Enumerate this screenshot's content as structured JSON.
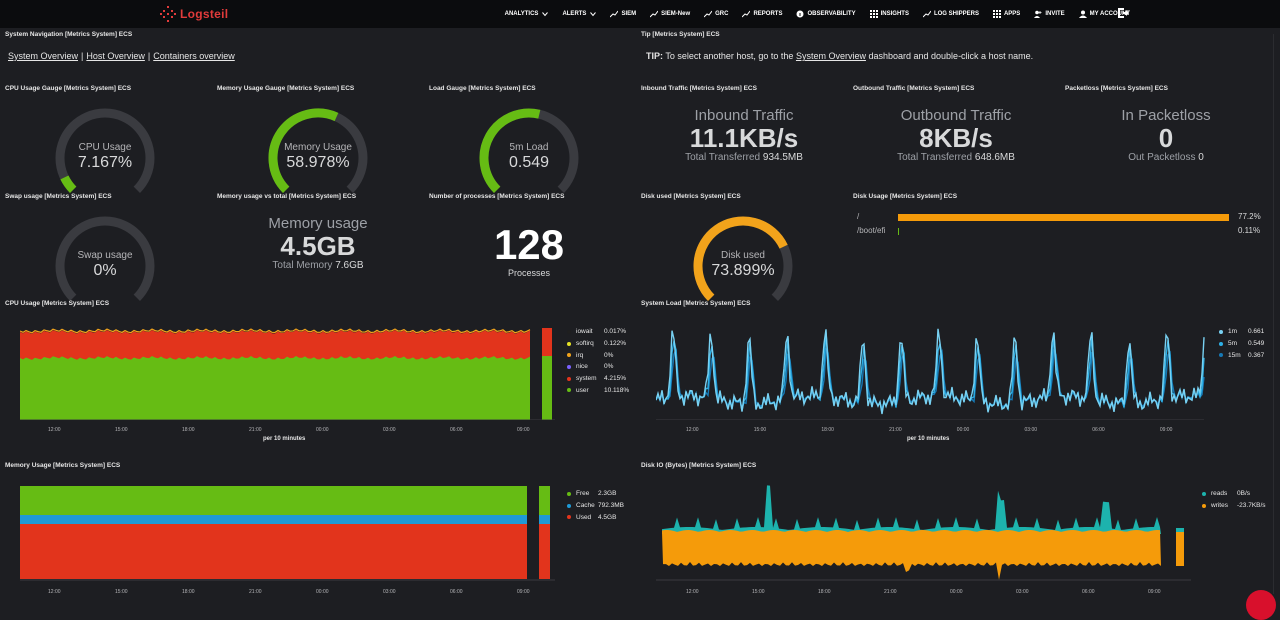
{
  "brand": {
    "name": "Logsteil"
  },
  "nav": [
    {
      "label": "ANALYTICS",
      "caret": true
    },
    {
      "label": "ALERTS",
      "caret": true
    },
    {
      "label": "SIEM",
      "icon": "chart-line-icon"
    },
    {
      "label": "SIEM-New",
      "icon": "chart-line-icon"
    },
    {
      "label": "GRC",
      "icon": "chart-line-icon"
    },
    {
      "label": "REPORTS",
      "icon": "chart-line-icon"
    },
    {
      "label": "OBSERVABILITY",
      "icon": "info-icon"
    },
    {
      "label": "INSIGHTS",
      "icon": "grid-icon"
    },
    {
      "label": "LOG SHIPPERS",
      "icon": "chart-line-icon"
    },
    {
      "label": "APPS",
      "icon": "grid-icon"
    },
    {
      "label": "INVITE",
      "icon": "user-plus-icon"
    },
    {
      "label": "MY ACCOUNT",
      "icon": "user-icon"
    }
  ],
  "panels": {
    "sysnav": {
      "title": "System Navigation [Metrics System] ECS",
      "links": [
        "System Overview",
        "Host Overview",
        "Containers overview"
      ]
    },
    "tip": {
      "title": "Tip [Metrics System] ECS",
      "prefix": "TIP:",
      "text1": "To select another host, go to the",
      "link": "System Overview",
      "text2": "dashboard and double-click a host name."
    },
    "cpu_gauge": {
      "title": "CPU Usage Gauge [Metrics System] ECS",
      "label": "CPU Usage",
      "value": "7.167%",
      "percent": 7.167
    },
    "mem_gauge": {
      "title": "Memory Usage Gauge [Metrics System] ECS",
      "label": "Memory Usage",
      "value": "58.978%",
      "percent": 58.978
    },
    "load_gauge": {
      "title": "Load Gauge [Metrics System] ECS",
      "label": "5m Load",
      "value": "0.549",
      "percent": 54.9
    },
    "inbound": {
      "title": "Inbound Traffic [Metrics System] ECS",
      "label": "Inbound Traffic",
      "value": "11.1KB/s",
      "sub_label": "Total Transferred",
      "sub_value": "934.5MB"
    },
    "outbound": {
      "title": "Outbound Traffic [Metrics System] ECS",
      "label": "Outbound Traffic",
      "value": "8KB/s",
      "sub_label": "Total Transferred",
      "sub_value": "648.6MB"
    },
    "packetloss": {
      "title": "Packetloss [Metrics System] ECS",
      "label": "In Packetloss",
      "value": "0",
      "sub_label": "Out Packetloss",
      "sub_value": "0"
    },
    "swap_gauge": {
      "title": "Swap usage [Metrics System] ECS",
      "label": "Swap usage",
      "value": "0%",
      "percent": 0
    },
    "mem_total": {
      "title": "Memory usage vs total [Metrics System] ECS",
      "label": "Memory usage",
      "value": "4.5GB",
      "sub_label": "Total Memory",
      "sub_value": "7.6GB"
    },
    "processes": {
      "title": "Number of processes [Metrics System] ECS",
      "value": "128",
      "label": "Processes"
    },
    "disk_used": {
      "title": "Disk used [Metrics System] ECS",
      "label": "Disk used",
      "value": "73.899%",
      "percent": 73.899
    },
    "disk_usage": {
      "title": "Disk Usage [Metrics System] ECS",
      "rows": [
        {
          "mount": "/",
          "value": "77.2%",
          "percent": 77.2
        },
        {
          "mount": "/boot/efi",
          "value": "0.11%",
          "percent": 0.11
        }
      ]
    },
    "cpu_usage": {
      "title": "CPU Usage [Metrics System] ECS",
      "xlabel": "per 10 minutes",
      "ticks": [
        "12:00",
        "15:00",
        "18:00",
        "21:00",
        "00:00",
        "03:00",
        "06:00",
        "09:00"
      ],
      "legend": [
        {
          "name": "iowait",
          "value": "0.017%",
          "color": "#1f1f1f"
        },
        {
          "name": "softirq",
          "value": "0.122%",
          "color": "#e5e226"
        },
        {
          "name": "irq",
          "value": "0%",
          "color": "#f2a31b"
        },
        {
          "name": "nice",
          "value": "0%",
          "color": "#7b61ff"
        },
        {
          "name": "system",
          "value": "4.215%",
          "color": "#e2341c"
        },
        {
          "name": "user",
          "value": "10.118%",
          "color": "#66bc14"
        }
      ]
    },
    "system_load": {
      "title": "System Load [Metrics System] ECS",
      "xlabel": "per 10 minutes",
      "ticks": [
        "12:00",
        "15:00",
        "18:00",
        "21:00",
        "00:00",
        "03:00",
        "06:00",
        "09:00"
      ],
      "legend": [
        {
          "name": "1m",
          "value": "0.661",
          "color": "#78d1f2"
        },
        {
          "name": "5m",
          "value": "0.549",
          "color": "#2db0e6"
        },
        {
          "name": "15m",
          "value": "0.367",
          "color": "#1679b5"
        }
      ]
    },
    "memory_usage": {
      "title": "Memory Usage [Metrics System] ECS",
      "ticks": [
        "12:00",
        "15:00",
        "18:00",
        "21:00",
        "00:00",
        "03:00",
        "06:00",
        "09:00"
      ],
      "legend": [
        {
          "name": "Free",
          "value": "2.3GB",
          "color": "#66bc14"
        },
        {
          "name": "Cache",
          "value": "792.3MB",
          "color": "#1f9ad6"
        },
        {
          "name": "Used",
          "value": "4.5GB",
          "color": "#e2341c"
        }
      ]
    },
    "disk_io": {
      "title": "Disk IO (Bytes) [Metrics System] ECS",
      "ticks": [
        "12:00",
        "15:00",
        "18:00",
        "21:00",
        "00:00",
        "03:00",
        "06:00",
        "09:00"
      ],
      "legend": [
        {
          "name": "reads",
          "value": "0B/s",
          "color": "#1db3ad"
        },
        {
          "name": "writes",
          "value": "-23.7KB/s",
          "color": "#f59b0a"
        }
      ]
    }
  }
}
